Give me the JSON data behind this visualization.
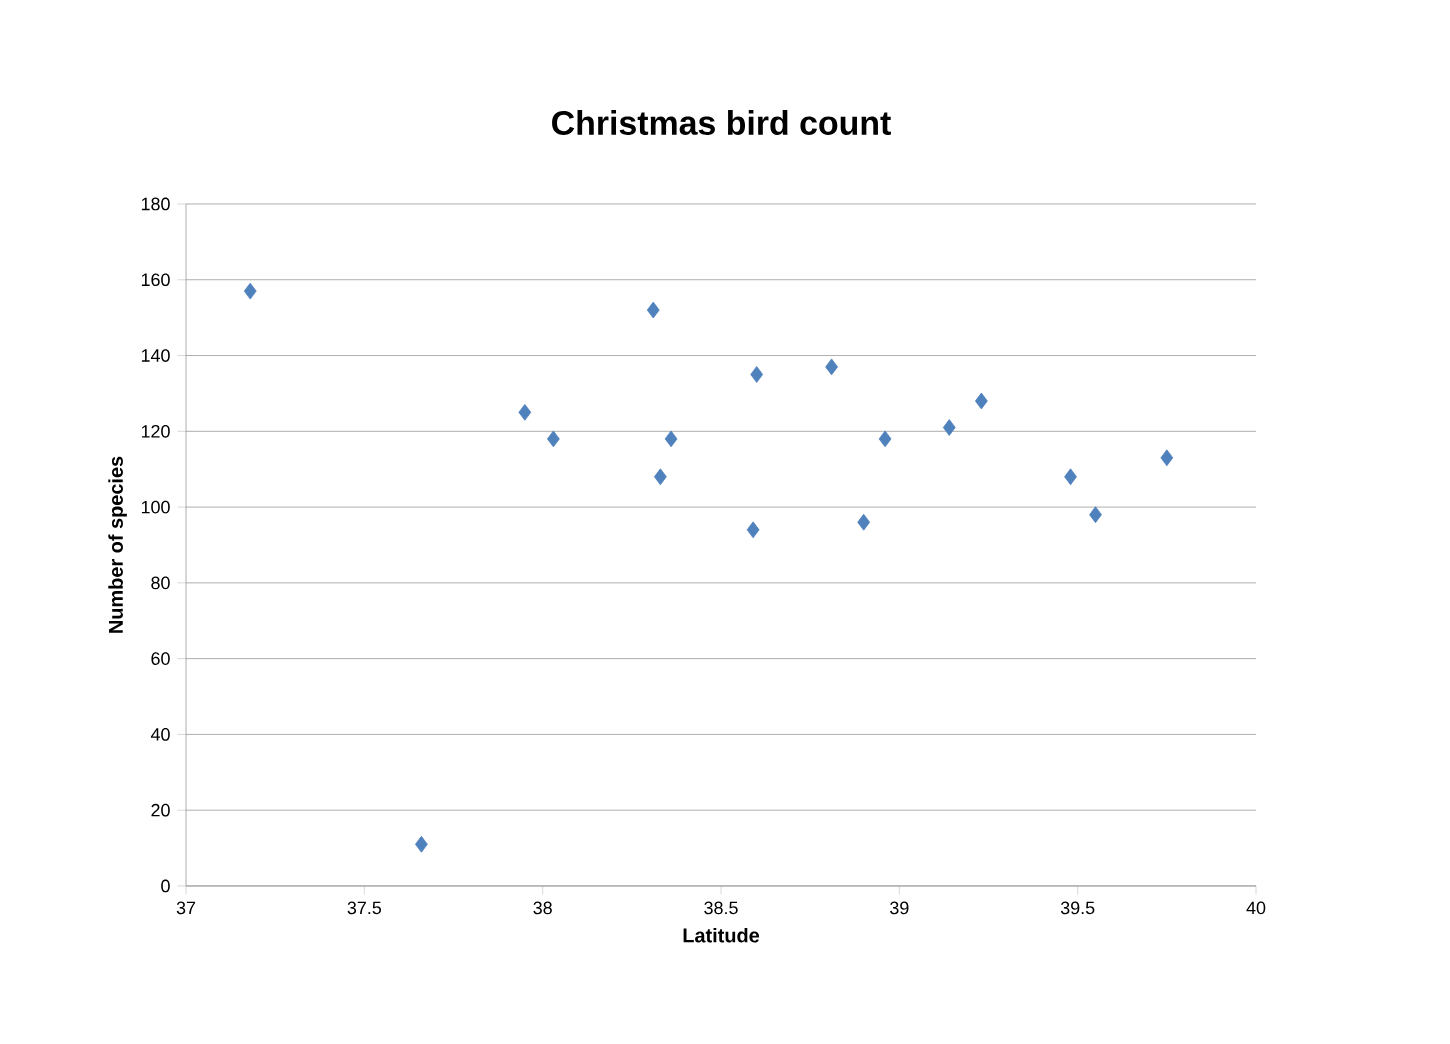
{
  "chart_data": {
    "type": "scatter",
    "title": "Christmas bird count",
    "xlabel": "Latitude",
    "ylabel": "Number of species",
    "x": [
      37.18,
      37.66,
      37.95,
      38.03,
      38.31,
      38.33,
      38.36,
      38.59,
      38.6,
      38.81,
      38.9,
      38.96,
      39.14,
      39.23,
      39.48,
      39.55,
      39.75
    ],
    "values": [
      157,
      11,
      125,
      118,
      152,
      108,
      118,
      94,
      135,
      137,
      96,
      118,
      121,
      128,
      108,
      98,
      113
    ],
    "color": "#4f81bd",
    "marker": "diamond",
    "grid": "y",
    "xlim": [
      37,
      40
    ],
    "xticks": [
      37,
      37.5,
      38,
      38.5,
      39,
      39.5,
      40
    ],
    "ylim": [
      0,
      180
    ],
    "yticks": [
      0,
      20,
      40,
      60,
      80,
      100,
      120,
      140,
      160,
      180
    ]
  }
}
